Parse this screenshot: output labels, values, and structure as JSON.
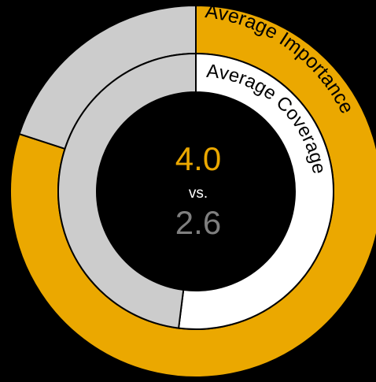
{
  "chart_data": {
    "type": "pie",
    "scale_max": 5,
    "series": [
      {
        "name": "Average Importance",
        "value": 4.0,
        "filled_color": "#EBA800",
        "remainder_color": "#CCCCCC",
        "label_color": "#000000"
      },
      {
        "name": "Average Coverage",
        "value": 2.6,
        "filled_color": "#FFFFFF",
        "remainder_color": "#CCCCCC",
        "label_color": "#000000"
      }
    ],
    "center": {
      "primary": "4.0",
      "separator": "vs.",
      "secondary": "2.6",
      "primary_color": "#EBA800",
      "separator_color": "#FFFFFF",
      "secondary_color": "#7F7F7F"
    }
  }
}
